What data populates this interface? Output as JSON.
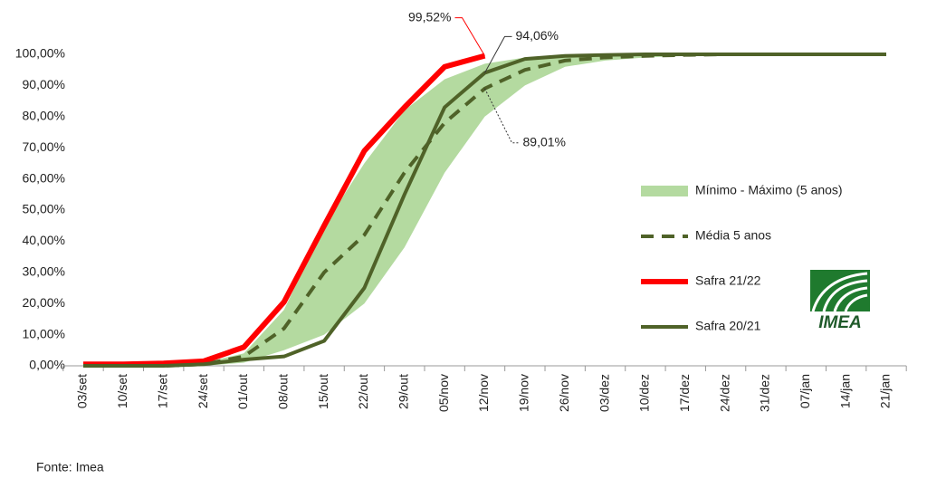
{
  "chart_data": {
    "type": "line",
    "categories": [
      "03/set",
      "10/set",
      "17/set",
      "24/set",
      "01/out",
      "08/out",
      "15/out",
      "22/out",
      "29/out",
      "05/nov",
      "12/nov",
      "19/nov",
      "26/nov",
      "03/dez",
      "10/dez",
      "17/dez",
      "24/dez",
      "31/dez",
      "07/jan",
      "14/jan",
      "21/jan"
    ],
    "ylim": [
      0,
      100
    ],
    "yticks": [
      {
        "value": 0,
        "label": "0,00%"
      },
      {
        "value": 10,
        "label": "10,00%"
      },
      {
        "value": 20,
        "label": "20,00%"
      },
      {
        "value": 30,
        "label": "30,00%"
      },
      {
        "value": 40,
        "label": "40,00%"
      },
      {
        "value": 50,
        "label": "50,00%"
      },
      {
        "value": 60,
        "label": "60,00%"
      },
      {
        "value": 70,
        "label": "70,00%"
      },
      {
        "value": 80,
        "label": "80,00%"
      },
      {
        "value": 90,
        "label": "90,00%"
      },
      {
        "value": 100,
        "label": "100,00%"
      }
    ],
    "band": {
      "name": "Mínimo - Máximo (5 anos)",
      "color": "#b4daa0",
      "lower": [
        0,
        0,
        0,
        0,
        1,
        5,
        10,
        20,
        38,
        62,
        80,
        90,
        96,
        98,
        99,
        99.5,
        100,
        100,
        100,
        100,
        100
      ],
      "upper": [
        0,
        0,
        0,
        1,
        4,
        18,
        45,
        65,
        82,
        92,
        97,
        99,
        100,
        100,
        100,
        100,
        100,
        100,
        100,
        100,
        100
      ]
    },
    "series": [
      {
        "name": "Média 5 anos",
        "color": "#4f6228",
        "dashed": true,
        "values": [
          0,
          0,
          0,
          0.5,
          3,
          12,
          30,
          42,
          62,
          78,
          89.01,
          95,
          98,
          99,
          99.5,
          99.8,
          100,
          100,
          100,
          100,
          100
        ],
        "value_labels": [
          null,
          null,
          null,
          null,
          null,
          null,
          null,
          null,
          null,
          null,
          "89,01%",
          null,
          null,
          null,
          null,
          null,
          null,
          null,
          null,
          null,
          null
        ]
      },
      {
        "name": "Safra 21/22",
        "color": "#ff0000",
        "dashed": false,
        "values": [
          0.5,
          0.5,
          0.8,
          1.5,
          6,
          20.5,
          45,
          69,
          83,
          96,
          99.52,
          null,
          null,
          null,
          null,
          null,
          null,
          null,
          null,
          null,
          null
        ],
        "value_labels": [
          null,
          null,
          null,
          null,
          null,
          null,
          null,
          null,
          null,
          null,
          "99,52%",
          null,
          null,
          null,
          null,
          null,
          null,
          null,
          null,
          null,
          null
        ]
      },
      {
        "name": "Safra 20/21",
        "color": "#4f6228",
        "dashed": false,
        "values": [
          0,
          0,
          0,
          0.5,
          2,
          3,
          8,
          25,
          55,
          83,
          94.06,
          98.5,
          99.5,
          99.8,
          100,
          100,
          100,
          100,
          100,
          100,
          100
        ],
        "value_labels": [
          null,
          null,
          null,
          null,
          null,
          null,
          null,
          null,
          null,
          null,
          "94,06%",
          null,
          null,
          null,
          null,
          null,
          null,
          null,
          null,
          null,
          null
        ]
      }
    ],
    "source": "Fonte: Imea",
    "logo": "IMEA"
  }
}
